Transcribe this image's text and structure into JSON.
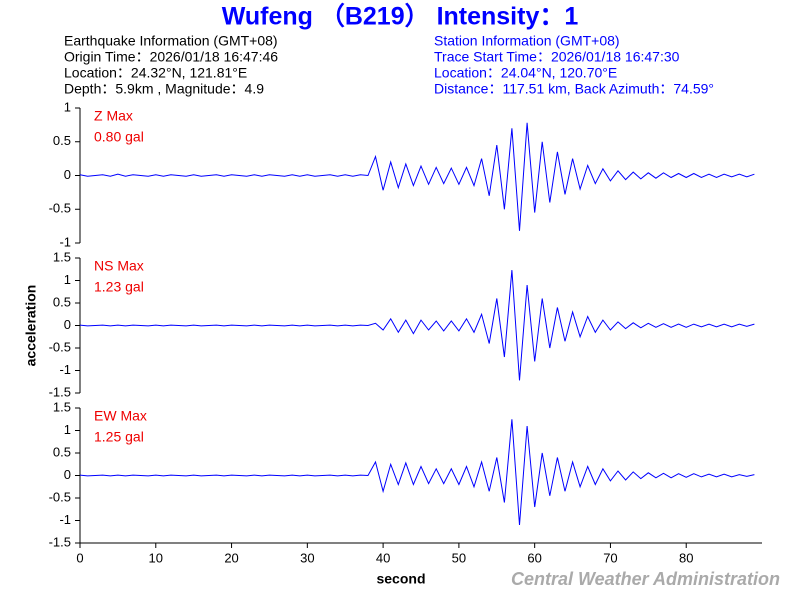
{
  "header": {
    "title": "Wufeng （B219） Intensity：1",
    "earthquake_info": [
      "Earthquake Information  (GMT+08)",
      "Origin Time：2026/01/18 16:47:46",
      "Location：24.32°N, 121.81°E",
      "Depth：5.9km , Magnitude：4.9"
    ],
    "station_info": [
      "Station Information  (GMT+08)",
      "Trace Start Time：2026/01/18 16:47:30",
      "Location：24.04°N, 120.70°E",
      "Distance：117.51 km, Back Azimuth：74.59°"
    ],
    "credit": "Central Weather Administration"
  },
  "chart_data": [
    {
      "type": "line",
      "annotations": [
        "Z Max",
        "0.80 gal"
      ],
      "color": "#0000ff",
      "x": [
        0,
        1,
        2,
        3,
        4,
        5,
        6,
        7,
        8,
        9,
        10,
        11,
        12,
        13,
        14,
        15,
        16,
        17,
        18,
        19,
        20,
        21,
        22,
        23,
        24,
        25,
        26,
        27,
        28,
        29,
        30,
        31,
        32,
        33,
        34,
        35,
        36,
        37,
        38,
        39,
        40,
        41,
        42,
        43,
        44,
        45,
        46,
        47,
        48,
        49,
        50,
        51,
        52,
        53,
        54,
        55,
        56,
        57,
        58,
        59,
        60,
        61,
        62,
        63,
        64,
        65,
        66,
        67,
        68,
        69,
        70,
        71,
        72,
        73,
        74,
        75,
        76,
        77,
        78,
        79,
        80,
        81,
        82,
        83,
        84,
        85,
        86,
        87,
        88,
        89
      ],
      "values": [
        0.01,
        -0.01,
        0,
        0.01,
        -0.01,
        0.02,
        -0.01,
        0.01,
        0,
        -0.01,
        0.01,
        -0.01,
        0.01,
        0,
        -0.01,
        0.01,
        -0.01,
        0,
        0.01,
        -0.01,
        0.01,
        0,
        -0.01,
        0.01,
        -0.01,
        0.01,
        0,
        -0.01,
        0.01,
        -0.01,
        0.01,
        -0.01,
        0,
        0.01,
        -0.01,
        0.01,
        -0.01,
        0.01,
        0,
        0.28,
        -0.22,
        0.2,
        -0.18,
        0.17,
        -0.15,
        0.14,
        -0.13,
        0.12,
        -0.12,
        0.11,
        -0.13,
        0.12,
        -0.15,
        0.25,
        -0.3,
        0.45,
        -0.5,
        0.7,
        -0.82,
        0.78,
        -0.55,
        0.5,
        -0.4,
        0.35,
        -0.28,
        0.25,
        -0.2,
        0.15,
        -0.12,
        0.1,
        -0.08,
        0.07,
        -0.06,
        0.05,
        -0.05,
        0.04,
        -0.04,
        0.04,
        -0.03,
        0.03,
        -0.03,
        0.03,
        -0.03,
        0.02,
        -0.03,
        0.02,
        -0.02,
        0.02,
        -0.02,
        0.02
      ],
      "xlim": [
        0,
        90
      ],
      "ylim": [
        -1,
        1
      ],
      "yticks": [
        -1,
        -0.5,
        0,
        0.5,
        1
      ]
    },
    {
      "type": "line",
      "annotations": [
        "NS Max",
        "1.23 gal"
      ],
      "color": "#0000ff",
      "ylabel": "acceleration",
      "x": [
        0,
        1,
        2,
        3,
        4,
        5,
        6,
        7,
        8,
        9,
        10,
        11,
        12,
        13,
        14,
        15,
        16,
        17,
        18,
        19,
        20,
        21,
        22,
        23,
        24,
        25,
        26,
        27,
        28,
        29,
        30,
        31,
        32,
        33,
        34,
        35,
        36,
        37,
        38,
        39,
        40,
        41,
        42,
        43,
        44,
        45,
        46,
        47,
        48,
        49,
        50,
        51,
        52,
        53,
        54,
        55,
        56,
        57,
        58,
        59,
        60,
        61,
        62,
        63,
        64,
        65,
        66,
        67,
        68,
        69,
        70,
        71,
        72,
        73,
        74,
        75,
        76,
        77,
        78,
        79,
        80,
        81,
        82,
        83,
        84,
        85,
        86,
        87,
        88,
        89
      ],
      "values": [
        0.01,
        -0.01,
        0,
        0.01,
        -0.01,
        0.01,
        -0.01,
        0.01,
        0,
        -0.01,
        0.01,
        -0.01,
        0.01,
        0,
        -0.01,
        0.01,
        -0.01,
        0,
        0.01,
        -0.01,
        0.01,
        0,
        -0.01,
        0.01,
        -0.01,
        0.01,
        0,
        -0.01,
        0.01,
        -0.01,
        0.01,
        -0.01,
        0,
        0.01,
        -0.01,
        0.01,
        -0.01,
        0.01,
        0,
        0.05,
        -0.1,
        0.15,
        -0.15,
        0.12,
        -0.18,
        0.12,
        -0.1,
        0.1,
        -0.12,
        0.1,
        -0.12,
        0.15,
        -0.15,
        0.25,
        -0.4,
        0.6,
        -0.7,
        1.23,
        -1.22,
        0.9,
        -0.8,
        0.6,
        -0.5,
        0.4,
        -0.35,
        0.3,
        -0.25,
        0.2,
        -0.15,
        0.12,
        -0.1,
        0.08,
        -0.07,
        0.06,
        -0.05,
        0.05,
        -0.04,
        0.04,
        -0.04,
        0.03,
        -0.04,
        0.03,
        -0.03,
        0.03,
        -0.03,
        0.03,
        -0.03,
        0.03,
        -0.02,
        0.03
      ],
      "xlim": [
        0,
        90
      ],
      "ylim": [
        -1.5,
        1.5
      ],
      "yticks": [
        -1.5,
        -1,
        -0.5,
        0,
        0.5,
        1,
        1.5
      ]
    },
    {
      "type": "line",
      "annotations": [
        "EW Max",
        "1.25 gal"
      ],
      "color": "#0000ff",
      "xlabel": "second",
      "x": [
        0,
        1,
        2,
        3,
        4,
        5,
        6,
        7,
        8,
        9,
        10,
        11,
        12,
        13,
        14,
        15,
        16,
        17,
        18,
        19,
        20,
        21,
        22,
        23,
        24,
        25,
        26,
        27,
        28,
        29,
        30,
        31,
        32,
        33,
        34,
        35,
        36,
        37,
        38,
        39,
        40,
        41,
        42,
        43,
        44,
        45,
        46,
        47,
        48,
        49,
        50,
        51,
        52,
        53,
        54,
        55,
        56,
        57,
        58,
        59,
        60,
        61,
        62,
        63,
        64,
        65,
        66,
        67,
        68,
        69,
        70,
        71,
        72,
        73,
        74,
        75,
        76,
        77,
        78,
        79,
        80,
        81,
        82,
        83,
        84,
        85,
        86,
        87,
        88,
        89
      ],
      "values": [
        0.01,
        -0.01,
        0,
        0.01,
        -0.01,
        0.01,
        -0.01,
        0.01,
        0,
        -0.01,
        0.01,
        -0.01,
        0.01,
        0,
        -0.01,
        0.01,
        -0.01,
        0,
        0.01,
        -0.01,
        0.01,
        0,
        -0.01,
        0.01,
        -0.01,
        0.01,
        0,
        -0.01,
        0.01,
        -0.01,
        0.01,
        -0.01,
        0,
        0.01,
        -0.01,
        0.01,
        -0.01,
        0.01,
        0,
        0.3,
        -0.35,
        0.25,
        -0.2,
        0.28,
        -0.2,
        0.2,
        -0.18,
        0.15,
        -0.18,
        0.15,
        -0.2,
        0.2,
        -0.25,
        0.3,
        -0.35,
        0.4,
        -0.6,
        1.25,
        -1.1,
        1.1,
        -0.7,
        0.5,
        -0.45,
        0.4,
        -0.35,
        0.3,
        -0.25,
        0.2,
        -0.2,
        0.15,
        -0.12,
        0.1,
        -0.1,
        0.08,
        -0.07,
        0.06,
        -0.05,
        0.05,
        -0.05,
        0.04,
        -0.04,
        0.04,
        -0.03,
        0.03,
        -0.03,
        0.03,
        -0.03,
        0.02,
        -0.02,
        0.02
      ],
      "xlim": [
        0,
        90
      ],
      "xticks": [
        0,
        10,
        20,
        30,
        40,
        50,
        60,
        70,
        80
      ],
      "ylim": [
        -1.5,
        1.5
      ],
      "yticks": [
        -1.5,
        -1,
        -0.5,
        0,
        0.5,
        1,
        1.5
      ]
    }
  ]
}
